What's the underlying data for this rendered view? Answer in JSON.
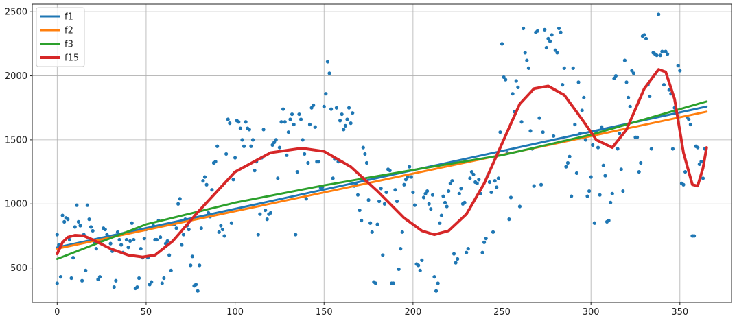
{
  "chart_data": {
    "type": "scatter",
    "title": "",
    "xlabel": "",
    "ylabel": "",
    "xlim": [
      -14,
      379
    ],
    "ylim": [
      230,
      2560
    ],
    "xticks": [
      0,
      50,
      100,
      150,
      200,
      250,
      300,
      350
    ],
    "yticks": [
      500,
      1000,
      1500,
      2000,
      2500
    ],
    "grid": true,
    "legend_position": "top-left",
    "scatter_color": "#1f77b4",
    "scatter": [
      [
        0,
        760
      ],
      [
        0,
        380
      ],
      [
        1,
        680
      ],
      [
        2,
        430
      ],
      [
        3,
        910
      ],
      [
        4,
        860
      ],
      [
        5,
        890
      ],
      [
        6,
        880
      ],
      [
        7,
        720
      ],
      [
        8,
        420
      ],
      [
        9,
        580
      ],
      [
        10,
        820
      ],
      [
        11,
        990
      ],
      [
        12,
        860
      ],
      [
        13,
        830
      ],
      [
        14,
        400
      ],
      [
        15,
        760
      ],
      [
        16,
        480
      ],
      [
        17,
        990
      ],
      [
        18,
        880
      ],
      [
        19,
        820
      ],
      [
        20,
        790
      ],
      [
        21,
        700
      ],
      [
        22,
        650
      ],
      [
        23,
        410
      ],
      [
        24,
        430
      ],
      [
        25,
        720
      ],
      [
        26,
        810
      ],
      [
        27,
        800
      ],
      [
        28,
        760
      ],
      [
        30,
        690
      ],
      [
        31,
        630
      ],
      [
        32,
        350
      ],
      [
        33,
        400
      ],
      [
        34,
        780
      ],
      [
        35,
        720
      ],
      [
        36,
        680
      ],
      [
        37,
        620
      ],
      [
        38,
        770
      ],
      [
        39,
        720
      ],
      [
        40,
        660
      ],
      [
        41,
        710
      ],
      [
        42,
        850
      ],
      [
        43,
        720
      ],
      [
        44,
        340
      ],
      [
        45,
        350
      ],
      [
        46,
        420
      ],
      [
        47,
        650
      ],
      [
        48,
        580
      ],
      [
        49,
        730
      ],
      [
        50,
        800
      ],
      [
        51,
        580
      ],
      [
        52,
        370
      ],
      [
        53,
        390
      ],
      [
        54,
        830
      ],
      [
        55,
        720
      ],
      [
        56,
        720
      ],
      [
        57,
        870
      ],
      [
        58,
        740
      ],
      [
        59,
        380
      ],
      [
        60,
        420
      ],
      [
        61,
        690
      ],
      [
        62,
        710
      ],
      [
        63,
        600
      ],
      [
        64,
        480
      ],
      [
        65,
        840
      ],
      [
        66,
        840
      ],
      [
        67,
        810
      ],
      [
        68,
        1000
      ],
      [
        69,
        1040
      ],
      [
        70,
        680
      ],
      [
        71,
        760
      ],
      [
        72,
        880
      ],
      [
        73,
        830
      ],
      [
        74,
        800
      ],
      [
        75,
        520
      ],
      [
        76,
        590
      ],
      [
        77,
        360
      ],
      [
        78,
        370
      ],
      [
        79,
        320
      ],
      [
        80,
        520
      ],
      [
        81,
        810
      ],
      [
        82,
        1180
      ],
      [
        83,
        1210
      ],
      [
        84,
        1150
      ],
      [
        85,
        930
      ],
      [
        86,
        900
      ],
      [
        87,
        1110
      ],
      [
        88,
        1320
      ],
      [
        89,
        1330
      ],
      [
        90,
        1450
      ],
      [
        91,
        780
      ],
      [
        92,
        830
      ],
      [
        93,
        800
      ],
      [
        94,
        750
      ],
      [
        95,
        1390
      ],
      [
        96,
        1660
      ],
      [
        97,
        1630
      ],
      [
        98,
        850
      ],
      [
        99,
        1190
      ],
      [
        100,
        1360
      ],
      [
        101,
        1650
      ],
      [
        102,
        1640
      ],
      [
        103,
        1590
      ],
      [
        104,
        1500
      ],
      [
        105,
        1450
      ],
      [
        106,
        1640
      ],
      [
        107,
        1590
      ],
      [
        108,
        1580
      ],
      [
        109,
        1450
      ],
      [
        110,
        1500
      ],
      [
        111,
        1260
      ],
      [
        112,
        1330
      ],
      [
        113,
        760
      ],
      [
        114,
        920
      ],
      [
        115,
        1360
      ],
      [
        116,
        1580
      ],
      [
        117,
        950
      ],
      [
        118,
        880
      ],
      [
        119,
        920
      ],
      [
        120,
        930
      ],
      [
        121,
        1460
      ],
      [
        122,
        1480
      ],
      [
        123,
        1500
      ],
      [
        124,
        1200
      ],
      [
        125,
        1440
      ],
      [
        126,
        1640
      ],
      [
        127,
        1740
      ],
      [
        128,
        1640
      ],
      [
        129,
        1380
      ],
      [
        130,
        1560
      ],
      [
        131,
        1660
      ],
      [
        132,
        1700
      ],
      [
        133,
        1620
      ],
      [
        134,
        760
      ],
      [
        135,
        1250
      ],
      [
        136,
        1700
      ],
      [
        137,
        1660
      ],
      [
        138,
        1500
      ],
      [
        139,
        1390
      ],
      [
        140,
        1040
      ],
      [
        141,
        1320
      ],
      [
        142,
        1620
      ],
      [
        143,
        1750
      ],
      [
        144,
        1770
      ],
      [
        145,
        1600
      ],
      [
        146,
        1330
      ],
      [
        147,
        1330
      ],
      [
        148,
        1130
      ],
      [
        149,
        1130
      ],
      [
        150,
        1760
      ],
      [
        151,
        1860
      ],
      [
        152,
        2110
      ],
      [
        153,
        2020
      ],
      [
        154,
        1740
      ],
      [
        155,
        1200
      ],
      [
        156,
        1350
      ],
      [
        157,
        1750
      ],
      [
        158,
        1330
      ],
      [
        159,
        1650
      ],
      [
        160,
        1700
      ],
      [
        161,
        1580
      ],
      [
        162,
        1610
      ],
      [
        163,
        1660
      ],
      [
        164,
        1750
      ],
      [
        165,
        1630
      ],
      [
        166,
        1710
      ],
      [
        167,
        1140
      ],
      [
        168,
        1150
      ],
      [
        169,
        1070
      ],
      [
        170,
        950
      ],
      [
        171,
        870
      ],
      [
        172,
        1440
      ],
      [
        173,
        1390
      ],
      [
        174,
        1320
      ],
      [
        175,
        1030
      ],
      [
        176,
        850
      ],
      [
        177,
        780
      ],
      [
        178,
        390
      ],
      [
        179,
        380
      ],
      [
        180,
        840
      ],
      [
        181,
        1020
      ],
      [
        182,
        1120
      ],
      [
        183,
        600
      ],
      [
        184,
        1000
      ],
      [
        185,
        1090
      ],
      [
        186,
        1270
      ],
      [
        187,
        1260
      ],
      [
        188,
        380
      ],
      [
        189,
        380
      ],
      [
        190,
        1110
      ],
      [
        191,
        1020
      ],
      [
        192,
        490
      ],
      [
        193,
        650
      ],
      [
        194,
        780
      ],
      [
        195,
        1150
      ],
      [
        196,
        1190
      ],
      [
        197,
        1210
      ],
      [
        198,
        1290
      ],
      [
        199,
        1210
      ],
      [
        200,
        1090
      ],
      [
        201,
        990
      ],
      [
        202,
        530
      ],
      [
        203,
        520
      ],
      [
        204,
        480
      ],
      [
        205,
        560
      ],
      [
        206,
        1050
      ],
      [
        207,
        1080
      ],
      [
        208,
        1100
      ],
      [
        209,
        1000
      ],
      [
        210,
        960
      ],
      [
        211,
        1070
      ],
      [
        212,
        430
      ],
      [
        213,
        320
      ],
      [
        214,
        380
      ],
      [
        215,
        850
      ],
      [
        216,
        910
      ],
      [
        217,
        1060
      ],
      [
        218,
        1010
      ],
      [
        219,
        980
      ],
      [
        220,
        1100
      ],
      [
        221,
        1160
      ],
      [
        222,
        1180
      ],
      [
        223,
        610
      ],
      [
        224,
        540
      ],
      [
        225,
        570
      ],
      [
        226,
        1080
      ],
      [
        227,
        1120
      ],
      [
        228,
        1000
      ],
      [
        229,
        1010
      ],
      [
        230,
        620
      ],
      [
        231,
        650
      ],
      [
        232,
        1200
      ],
      [
        233,
        1250
      ],
      [
        234,
        1230
      ],
      [
        235,
        1170
      ],
      [
        236,
        1160
      ],
      [
        237,
        1190
      ],
      [
        238,
        1080
      ],
      [
        239,
        620
      ],
      [
        240,
        700
      ],
      [
        241,
        730
      ],
      [
        242,
        1220
      ],
      [
        243,
        1170
      ],
      [
        244,
        1090
      ],
      [
        245,
        780
      ],
      [
        246,
        1180
      ],
      [
        247,
        1130
      ],
      [
        248,
        1200
      ],
      [
        249,
        1560
      ],
      [
        250,
        2250
      ],
      [
        251,
        1990
      ],
      [
        252,
        1970
      ],
      [
        253,
        1400
      ],
      [
        254,
        880
      ],
      [
        255,
        1050
      ],
      [
        256,
        1860
      ],
      [
        257,
        1720
      ],
      [
        258,
        1960
      ],
      [
        259,
        1910
      ],
      [
        260,
        980
      ],
      [
        261,
        1640
      ],
      [
        262,
        2370
      ],
      [
        263,
        2180
      ],
      [
        264,
        2120
      ],
      [
        265,
        2060
      ],
      [
        266,
        1570
      ],
      [
        267,
        1430
      ],
      [
        268,
        1140
      ],
      [
        269,
        2340
      ],
      [
        270,
        2350
      ],
      [
        271,
        1670
      ],
      [
        272,
        1150
      ],
      [
        273,
        1560
      ],
      [
        274,
        2360
      ],
      [
        275,
        2220
      ],
      [
        276,
        2290
      ],
      [
        277,
        2270
      ],
      [
        278,
        2320
      ],
      [
        279,
        1530
      ],
      [
        280,
        2200
      ],
      [
        281,
        2180
      ],
      [
        282,
        2370
      ],
      [
        283,
        2340
      ],
      [
        284,
        1930
      ],
      [
        285,
        2060
      ],
      [
        286,
        1290
      ],
      [
        287,
        1320
      ],
      [
        288,
        1370
      ],
      [
        289,
        1060
      ],
      [
        290,
        2060
      ],
      [
        291,
        1620
      ],
      [
        292,
        1240
      ],
      [
        293,
        1950
      ],
      [
        294,
        1550
      ],
      [
        295,
        1730
      ],
      [
        296,
        1830
      ],
      [
        297,
        1500
      ],
      [
        298,
        1060
      ],
      [
        299,
        1100
      ],
      [
        300,
        1210
      ],
      [
        301,
        1460
      ],
      [
        302,
        850
      ],
      [
        303,
        1560
      ],
      [
        304,
        1440
      ],
      [
        305,
        1070
      ],
      [
        306,
        1600
      ],
      [
        307,
        1300
      ],
      [
        308,
        1220
      ],
      [
        309,
        860
      ],
      [
        310,
        870
      ],
      [
        311,
        1010
      ],
      [
        312,
        1080
      ],
      [
        313,
        1980
      ],
      [
        314,
        2000
      ],
      [
        315,
        1430
      ],
      [
        316,
        1550
      ],
      [
        317,
        1270
      ],
      [
        318,
        1100
      ],
      [
        319,
        2120
      ],
      [
        320,
        1950
      ],
      [
        321,
        1830
      ],
      [
        322,
        1760
      ],
      [
        323,
        2040
      ],
      [
        324,
        2020
      ],
      [
        325,
        1520
      ],
      [
        326,
        1520
      ],
      [
        327,
        1250
      ],
      [
        328,
        1320
      ],
      [
        329,
        2310
      ],
      [
        330,
        2320
      ],
      [
        331,
        2290
      ],
      [
        332,
        1930
      ],
      [
        333,
        1840
      ],
      [
        334,
        1430
      ],
      [
        335,
        2180
      ],
      [
        336,
        2170
      ],
      [
        337,
        2160
      ],
      [
        338,
        2480
      ],
      [
        339,
        2160
      ],
      [
        340,
        2190
      ],
      [
        341,
        1930
      ],
      [
        342,
        2190
      ],
      [
        343,
        2170
      ],
      [
        344,
        1890
      ],
      [
        345,
        1860
      ],
      [
        346,
        1430
      ],
      [
        347,
        1750
      ],
      [
        348,
        1710
      ],
      [
        349,
        2080
      ],
      [
        350,
        2040
      ],
      [
        351,
        1160
      ],
      [
        352,
        1150
      ],
      [
        353,
        1250
      ],
      [
        354,
        1680
      ],
      [
        355,
        1660
      ],
      [
        356,
        1620
      ],
      [
        357,
        750
      ],
      [
        358,
        750
      ],
      [
        359,
        1450
      ],
      [
        360,
        1440
      ],
      [
        361,
        1310
      ],
      [
        362,
        1330
      ],
      [
        363,
        1200
      ],
      [
        364,
        1430
      ]
    ],
    "series": [
      {
        "name": "f1",
        "color": "#1f77b4",
        "x": [
          0,
          365
        ],
        "y": [
          660,
          1760
        ]
      },
      {
        "name": "f2",
        "color": "#ff7f0e",
        "x": [
          0,
          365
        ],
        "y": [
          650,
          1720
        ]
      },
      {
        "name": "f3",
        "color": "#2ca02c",
        "x": [
          0,
          50,
          100,
          150,
          200,
          250,
          300,
          365
        ],
        "y": [
          570,
          840,
          1010,
          1145,
          1265,
          1380,
          1540,
          1800
        ]
      },
      {
        "name": "f15",
        "color": "#d62728",
        "x": [
          0,
          3,
          6,
          10,
          15,
          20,
          30,
          40,
          48,
          55,
          65,
          80,
          100,
          120,
          135,
          140,
          150,
          165,
          180,
          195,
          205,
          212,
          220,
          230,
          240,
          250,
          260,
          268,
          276,
          285,
          295,
          303,
          312,
          320,
          330,
          338,
          342,
          347,
          352,
          357,
          360,
          363,
          365
        ],
        "y": [
          610,
          700,
          740,
          755,
          750,
          720,
          650,
          600,
          585,
          600,
          710,
          950,
          1250,
          1400,
          1430,
          1430,
          1410,
          1290,
          1100,
          890,
          790,
          760,
          790,
          920,
          1160,
          1470,
          1780,
          1900,
          1920,
          1850,
          1660,
          1500,
          1440,
          1580,
          1900,
          2050,
          2030,
          1820,
          1400,
          1150,
          1140,
          1280,
          1440
        ]
      }
    ]
  }
}
